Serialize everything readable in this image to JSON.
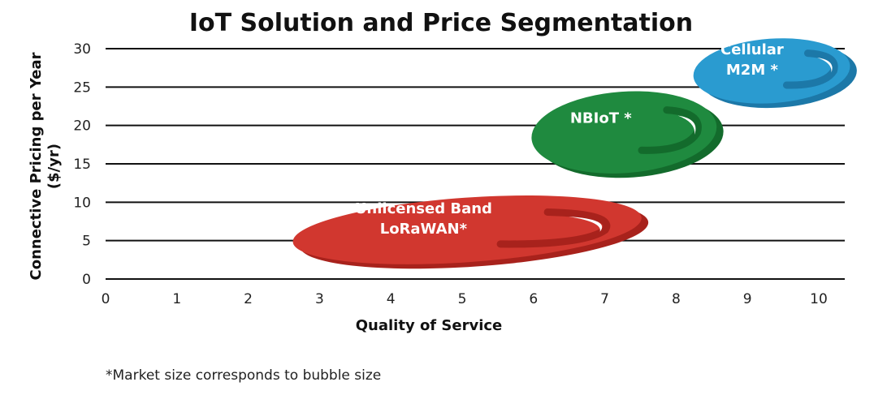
{
  "chart_data": {
    "type": "bubble",
    "title": "IoT Solution and Price Segmentation",
    "xlabel": "Quality of Service",
    "ylabel": [
      "Connective Pricing  per Year",
      "($/yr)"
    ],
    "xlim": [
      0,
      10
    ],
    "ylim": [
      0,
      30
    ],
    "xticks": [
      "0",
      "1",
      "2",
      "3",
      "4",
      "5",
      "6",
      "7",
      "8",
      "9",
      "10"
    ],
    "yticks": [
      "0",
      "5",
      "10",
      "15",
      "20",
      "25",
      "30"
    ],
    "grid": "horizontal",
    "series": [
      {
        "name": "Unlicensed Band LoRaWAN*",
        "lines": [
          "Unlicensed Band",
          "LoRaWAN*"
        ],
        "x": 5.07,
        "y": 6.4,
        "x_spread": 2.45,
        "y_spread": 4.2,
        "color": "#d1372f",
        "shade": "#a8221c"
      },
      {
        "name": "NBIoT *",
        "lines": [
          "NBIoT *"
        ],
        "x": 7.27,
        "y": 19.1,
        "x_spread": 1.3,
        "y_spread": 5.3,
        "color": "#1f8a3f",
        "shade": "#136b2c"
      },
      {
        "name": "Cellular M2M *",
        "lines": [
          "Cellular",
          "M2M *"
        ],
        "x": 9.34,
        "y": 27.1,
        "x_spread": 1.1,
        "y_spread": 4.2,
        "color": "#2a9bd0",
        "shade": "#1c78a8"
      }
    ],
    "footnote": "*Market size corresponds to bubble size"
  }
}
